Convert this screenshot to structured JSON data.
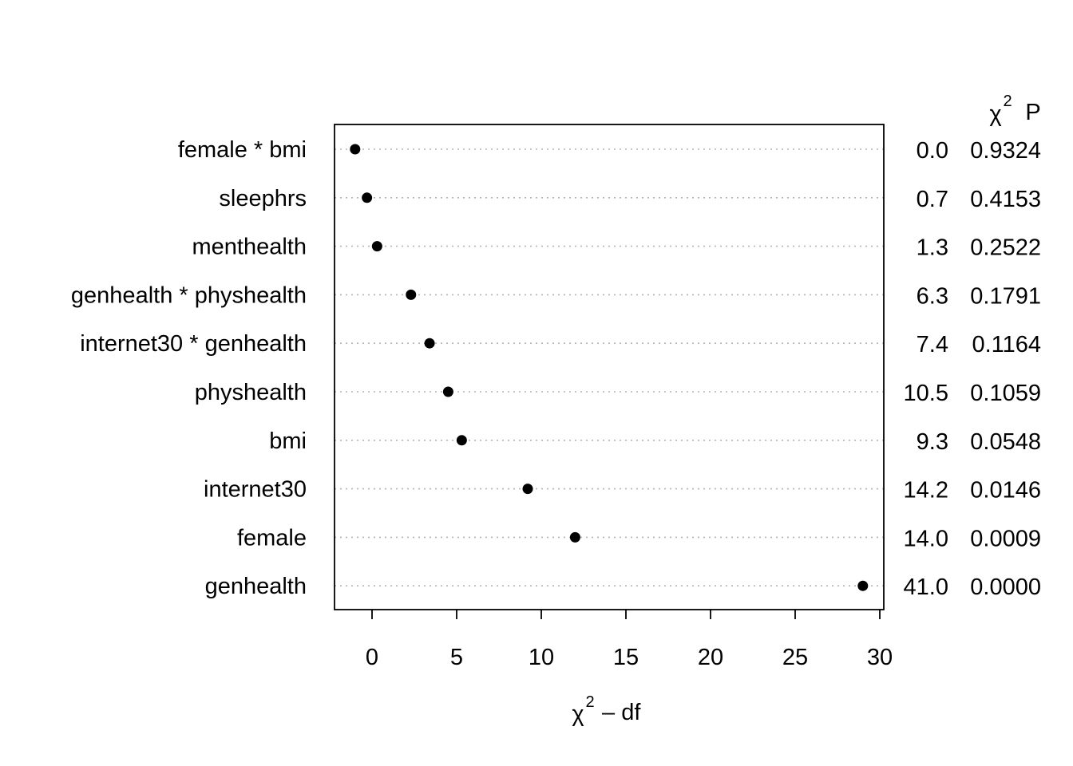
{
  "chart_data": {
    "type": "scatter",
    "xlabel_base": "χ",
    "xlabel_exp": "2",
    "xlabel_rest": " – df",
    "xlim": [
      -2.2,
      30.3
    ],
    "xticks": [
      "0",
      "5",
      "10",
      "15",
      "20",
      "25",
      "30"
    ],
    "xtick_values": [
      0,
      5,
      10,
      15,
      20,
      25,
      30
    ],
    "column_headers": {
      "chi_base": "χ",
      "chi_exp": "2",
      "p": "P"
    },
    "points": [
      {
        "label": "female * bmi",
        "x": -1.0,
        "chi2": "0.0",
        "p": "0.9324"
      },
      {
        "label": "sleephrs",
        "x": -0.3,
        "chi2": "0.7",
        "p": "0.4153"
      },
      {
        "label": "menthealth",
        "x": 0.3,
        "chi2": "1.3",
        "p": "0.2522"
      },
      {
        "label": "genhealth * physhealth",
        "x": 2.3,
        "chi2": "6.3",
        "p": "0.1791"
      },
      {
        "label": "internet30 * genhealth",
        "x": 3.4,
        "chi2": "7.4",
        "p": "0.1164"
      },
      {
        "label": "physhealth",
        "x": 4.5,
        "chi2": "10.5",
        "p": "0.1059"
      },
      {
        "label": "bmi",
        "x": 5.3,
        "chi2": "9.3",
        "p": "0.0548"
      },
      {
        "label": "internet30",
        "x": 9.2,
        "chi2": "14.2",
        "p": "0.0146"
      },
      {
        "label": "female",
        "x": 12.0,
        "chi2": "14.0",
        "p": "0.0009"
      },
      {
        "label": "genhealth",
        "x": 29.0,
        "chi2": "41.0",
        "p": "0.0000"
      }
    ]
  }
}
